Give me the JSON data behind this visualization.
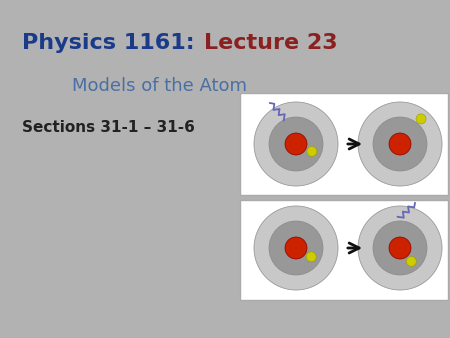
{
  "background_color": "#b2b2b2",
  "title_physics": "Physics 1161:  ",
  "title_lecture": "Lecture 23",
  "subtitle": "Models of the Atom",
  "sections": "Sections 31-1 – 31-6",
  "title_physics_color": "#1a3a8a",
  "title_lecture_color": "#8b2020",
  "subtitle_color": "#4a6fa5",
  "sections_color": "#222222",
  "title_fontsize": 16,
  "subtitle_fontsize": 13,
  "sections_fontsize": 11,
  "box_facecolor": "white",
  "box_edgecolor": "#aaaaaa",
  "atom_outer_color": "#c8c8c8",
  "atom_mid_color": "#a8a8a8",
  "atom_inner_color": "#989898",
  "nucleus_color": "#cc2200",
  "electron_color": "#cccc00",
  "photon_color": "#6666bb",
  "arrow_color": "#111111"
}
